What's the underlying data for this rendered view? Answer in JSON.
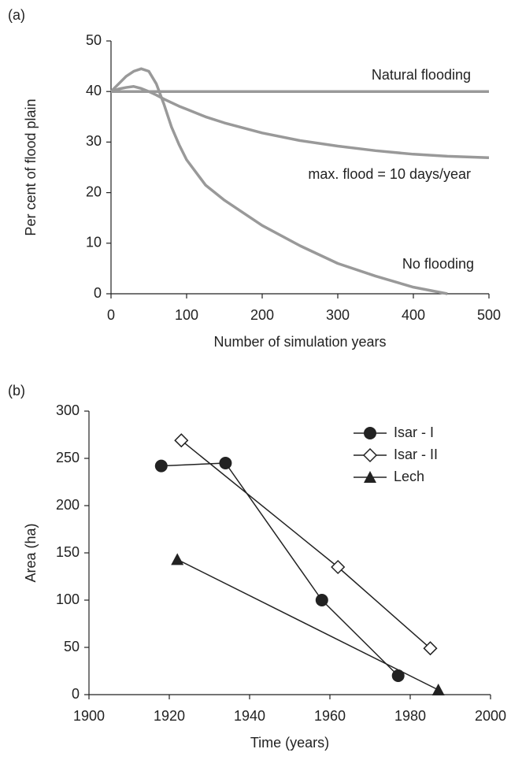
{
  "chart_data": [
    {
      "type": "line",
      "panel_label": "(a)",
      "xlabel": "Number of simulation years",
      "ylabel": "Per cent of flood plain",
      "x": [
        0,
        10,
        20,
        30,
        40,
        50,
        60,
        70,
        80,
        90,
        100,
        125,
        150,
        200,
        250,
        300,
        350,
        400,
        445,
        500
      ],
      "series": [
        {
          "color": "#999999",
          "values": [
            40,
            40,
            40,
            40,
            40,
            40,
            40,
            40,
            40,
            40,
            40,
            40,
            40,
            40,
            40,
            40,
            40,
            40,
            40,
            40
          ]
        },
        {
          "color": "#999999",
          "values": [
            40,
            40.5,
            40.8,
            41,
            40.6,
            40,
            39.3,
            38.5,
            37.8,
            37.1,
            36.5,
            35,
            33.8,
            31.8,
            30.3,
            29.2,
            28.3,
            27.6,
            27.2,
            26.9
          ]
        },
        {
          "color": "#999999",
          "values": [
            40,
            41.5,
            43,
            44,
            44.5,
            44,
            41.5,
            37.5,
            33,
            29.5,
            26.5,
            21.5,
            18.5,
            13.5,
            9.5,
            6,
            3.5,
            1.3,
            0,
            null
          ]
        }
      ],
      "annotations": [
        "Natural flooding",
        "max. flood = 10 days/year",
        "No flooding"
      ],
      "xlim": [
        0,
        500
      ],
      "xticks": [
        0,
        100,
        200,
        300,
        400,
        500
      ],
      "ylim": [
        0,
        50
      ],
      "yticks": [
        0,
        10,
        20,
        30,
        40,
        50
      ]
    },
    {
      "type": "line",
      "panel_label": "(b)",
      "xlabel": "Time (years)",
      "ylabel": "Area (ha)",
      "series": [
        {
          "name": "Isar - I",
          "color": "#222222",
          "marker": "circle",
          "x": [
            1918,
            1934,
            1958,
            1977
          ],
          "values": [
            242,
            245,
            100,
            20
          ]
        },
        {
          "name": "Isar - II",
          "color": "#222222",
          "marker": "diamond",
          "x": [
            1923,
            1962,
            1985
          ],
          "values": [
            269,
            135,
            49
          ]
        },
        {
          "name": "Lech",
          "color": "#222222",
          "marker": "triangle",
          "x": [
            1922,
            1987
          ],
          "values": [
            143,
            5
          ]
        }
      ],
      "legend": "upper right",
      "xlim": [
        1900,
        2000
      ],
      "xticks": [
        1900,
        1920,
        1940,
        1960,
        1980,
        2000
      ],
      "ylim": [
        0,
        300
      ],
      "yticks": [
        0,
        50,
        100,
        150,
        200,
        250,
        300
      ]
    }
  ]
}
